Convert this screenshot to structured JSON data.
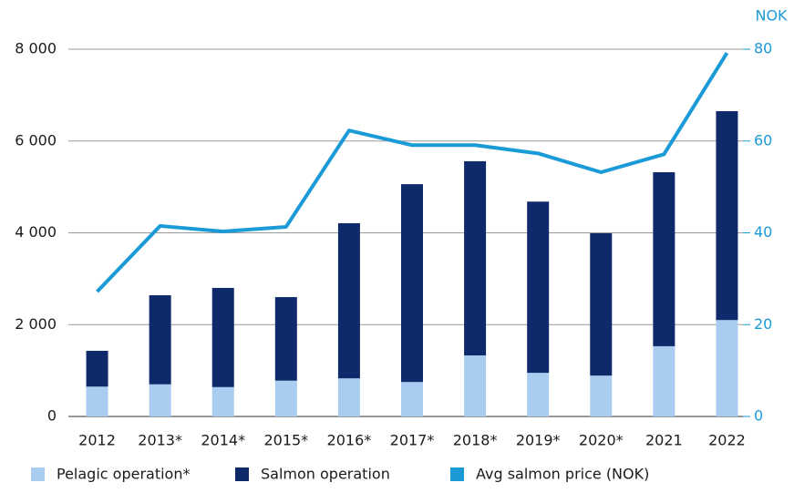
{
  "chart_data": {
    "type": "bar",
    "y2_label": "NOK",
    "categories": [
      "2012",
      "2013*",
      "2014*",
      "2015*",
      "2016*",
      "2017*",
      "2018*",
      "2019*",
      "2020*",
      "2021",
      "2022"
    ],
    "series": [
      {
        "name": "Pelagic operation*",
        "color": "#a8cdf0",
        "stack": true,
        "values": [
          650,
          700,
          640,
          780,
          830,
          750,
          1330,
          950,
          890,
          1530,
          2100
        ]
      },
      {
        "name": "Salmon operation",
        "color": "#0f2a6b",
        "stack": true,
        "values": [
          780,
          1940,
          2160,
          1820,
          3380,
          4310,
          4230,
          3730,
          3100,
          3790,
          4550
        ]
      },
      {
        "name": "Avg salmon price (NOK)",
        "color": "#1a9ad6",
        "type": "line",
        "axis": "y2",
        "values": [
          27.2,
          41.5,
          40.3,
          41.3,
          62.3,
          59.1,
          59.1,
          57.3,
          53.2,
          57.1,
          79.2
        ]
      }
    ],
    "ylim": [
      0,
      8000
    ],
    "yticks": [
      0,
      {
        "value": 2000,
        "label": "2 000"
      },
      {
        "value": 4000,
        "label": "4 000"
      },
      {
        "value": 6000,
        "label": "6 000"
      },
      {
        "value": 8000,
        "label": "8 000"
      }
    ],
    "y2lim": [
      0,
      80
    ],
    "y2ticks": [
      0,
      20,
      40,
      60,
      80
    ],
    "grid": true,
    "legend": "bottom"
  }
}
